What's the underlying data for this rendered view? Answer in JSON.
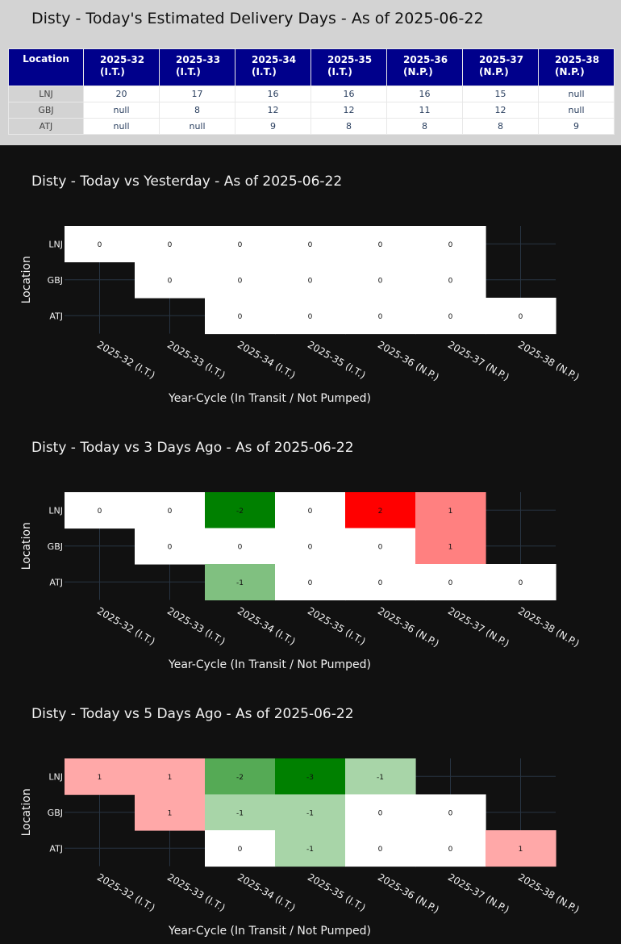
{
  "table": {
    "title": "Disty - Today's Estimated Delivery Days - As of 2025-06-22",
    "location_header": "Location",
    "columns": [
      {
        "line1": "2025-32",
        "line2": "(I.T.)"
      },
      {
        "line1": "2025-33",
        "line2": "(I.T.)"
      },
      {
        "line1": "2025-34",
        "line2": "(I.T.)"
      },
      {
        "line1": "2025-35",
        "line2": "(I.T.)"
      },
      {
        "line1": "2025-36",
        "line2": "(N.P.)"
      },
      {
        "line1": "2025-37",
        "line2": "(N.P.)"
      },
      {
        "line1": "2025-38",
        "line2": "(N.P.)"
      }
    ],
    "rows": [
      {
        "location": "LNJ",
        "values": [
          "20",
          "17",
          "16",
          "16",
          "16",
          "15",
          "null"
        ]
      },
      {
        "location": "GBJ",
        "values": [
          "null",
          "8",
          "12",
          "12",
          "11",
          "12",
          "null"
        ]
      },
      {
        "location": "ATJ",
        "values": [
          "null",
          "null",
          "9",
          "8",
          "8",
          "8",
          "9"
        ]
      }
    ]
  },
  "colors": {
    "panel_bg": "#d3d3d3",
    "header_bg": "#00008b",
    "chart_bg": "#111111",
    "zero": "#ffffff",
    "pos_1": "#ffa8a8",
    "pos_1b": "#ff8080",
    "pos_2": "#ff0000",
    "neg_1": "#a8d5a8",
    "neg_1b": "#80c080",
    "neg_2": "#55aa55",
    "neg_3": "#008000"
  },
  "chart_data": [
    {
      "type": "heatmap",
      "title": "Disty - Today vs Yesterday - As of 2025-06-22",
      "xlabel": "Year-Cycle (In Transit / Not Pumped)",
      "ylabel": "Location",
      "x": [
        "2025-32 (I.T.)",
        "2025-33 (I.T.)",
        "2025-34 (I.T.)",
        "2025-35 (I.T.)",
        "2025-36 (N.P.)",
        "2025-37 (N.P.)",
        "2025-38 (N.P.)"
      ],
      "y": [
        "LNJ",
        "GBJ",
        "ATJ"
      ],
      "z": [
        [
          0,
          0,
          0,
          0,
          0,
          0,
          null
        ],
        [
          null,
          0,
          0,
          0,
          0,
          0,
          null
        ],
        [
          null,
          null,
          0,
          0,
          0,
          0,
          0
        ]
      ],
      "cell_colors": [
        [
          "#ffffff",
          "#ffffff",
          "#ffffff",
          "#ffffff",
          "#ffffff",
          "#ffffff",
          null
        ],
        [
          null,
          "#ffffff",
          "#ffffff",
          "#ffffff",
          "#ffffff",
          "#ffffff",
          null
        ],
        [
          null,
          null,
          "#ffffff",
          "#ffffff",
          "#ffffff",
          "#ffffff",
          "#ffffff"
        ]
      ],
      "grid": true
    },
    {
      "type": "heatmap",
      "title": "Disty - Today vs 3 Days Ago - As of 2025-06-22",
      "xlabel": "Year-Cycle (In Transit / Not Pumped)",
      "ylabel": "Location",
      "x": [
        "2025-32 (I.T.)",
        "2025-33 (I.T.)",
        "2025-34 (I.T.)",
        "2025-35 (I.T.)",
        "2025-36 (N.P.)",
        "2025-37 (N.P.)",
        "2025-38 (N.P.)"
      ],
      "y": [
        "LNJ",
        "GBJ",
        "ATJ"
      ],
      "z": [
        [
          0,
          0,
          -2,
          0,
          2,
          1,
          null
        ],
        [
          null,
          0,
          0,
          0,
          0,
          1,
          null
        ],
        [
          null,
          null,
          -1,
          0,
          0,
          0,
          0
        ]
      ],
      "cell_colors": [
        [
          "#ffffff",
          "#ffffff",
          "#008000",
          "#ffffff",
          "#ff0000",
          "#ff8080",
          null
        ],
        [
          null,
          "#ffffff",
          "#ffffff",
          "#ffffff",
          "#ffffff",
          "#ff8080",
          null
        ],
        [
          null,
          null,
          "#80c080",
          "#ffffff",
          "#ffffff",
          "#ffffff",
          "#ffffff"
        ]
      ],
      "grid": true
    },
    {
      "type": "heatmap",
      "title": "Disty - Today vs 5 Days Ago - As of 2025-06-22",
      "xlabel": "Year-Cycle (In Transit / Not Pumped)",
      "ylabel": "Location",
      "x": [
        "2025-32 (I.T.)",
        "2025-33 (I.T.)",
        "2025-34 (I.T.)",
        "2025-35 (I.T.)",
        "2025-36 (N.P.)",
        "2025-37 (N.P.)",
        "2025-38 (N.P.)"
      ],
      "y": [
        "LNJ",
        "GBJ",
        "ATJ"
      ],
      "z": [
        [
          1,
          1,
          -2,
          -3,
          -1,
          null,
          null
        ],
        [
          null,
          1,
          -1,
          -1,
          0,
          0,
          null
        ],
        [
          null,
          null,
          0,
          -1,
          0,
          0,
          1
        ]
      ],
      "cell_colors": [
        [
          "#ffa8a8",
          "#ffa8a8",
          "#55aa55",
          "#008000",
          "#a8d5a8",
          null,
          null
        ],
        [
          null,
          "#ffa8a8",
          "#a8d5a8",
          "#a8d5a8",
          "#ffffff",
          "#ffffff",
          null
        ],
        [
          null,
          null,
          "#ffffff",
          "#a8d5a8",
          "#ffffff",
          "#ffffff",
          "#ffa8a8"
        ]
      ],
      "grid": true
    }
  ]
}
